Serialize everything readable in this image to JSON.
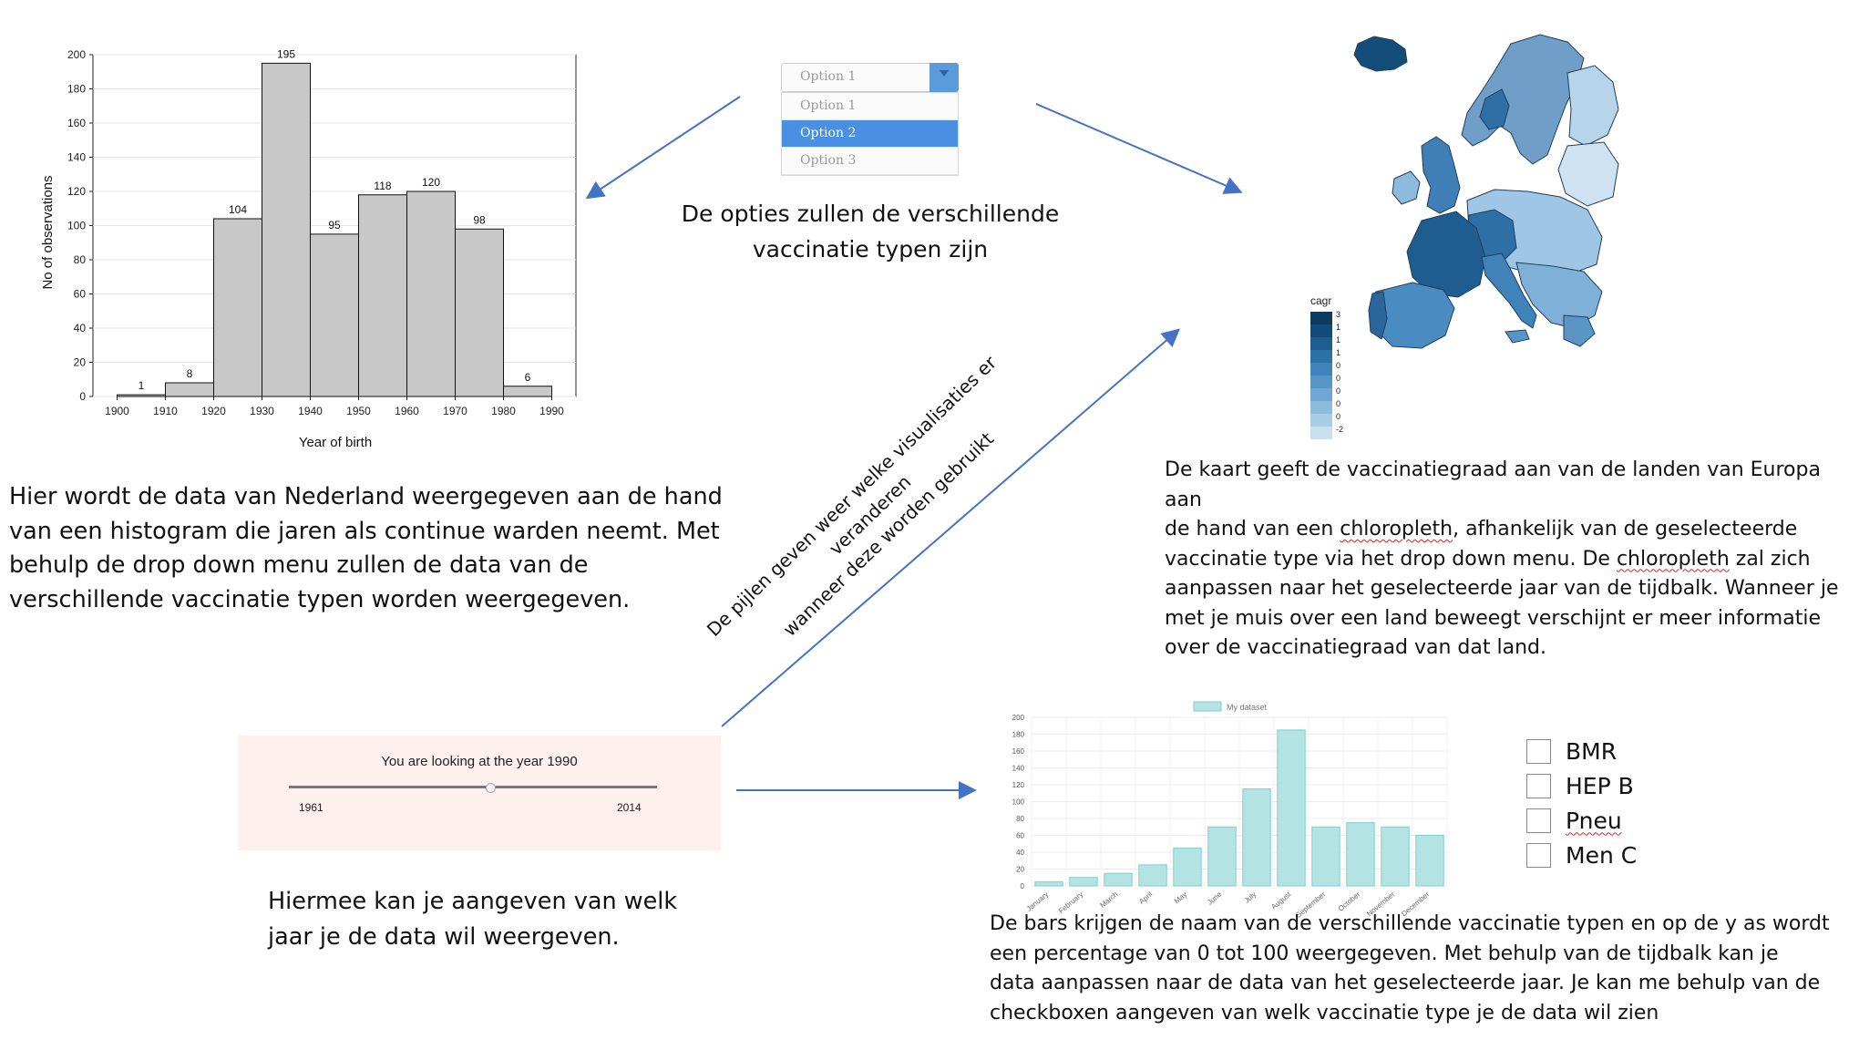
{
  "histogram": {
    "ylabel": "No of observations",
    "xlabel": "Year of birth",
    "bars": [
      {
        "from": 1900,
        "to": 1910,
        "value": 1
      },
      {
        "from": 1910,
        "to": 1920,
        "value": 8
      },
      {
        "from": 1920,
        "to": 1930,
        "value": 104
      },
      {
        "from": 1930,
        "to": 1940,
        "value": 195
      },
      {
        "from": 1940,
        "to": 1950,
        "value": 95
      },
      {
        "from": 1950,
        "to": 1960,
        "value": 118
      },
      {
        "from": 1960,
        "to": 1970,
        "value": 120
      },
      {
        "from": 1970,
        "to": 1980,
        "value": 98
      },
      {
        "from": 1980,
        "to": 1990,
        "value": 6
      }
    ],
    "yticks": [
      0,
      20,
      40,
      60,
      80,
      100,
      120,
      140,
      160,
      180,
      200
    ],
    "xticks": [
      1900,
      1910,
      1920,
      1930,
      1940,
      1950,
      1960,
      1970,
      1980,
      1990
    ],
    "ylim": [
      0,
      200
    ],
    "xlim": [
      1895,
      1995
    ],
    "bar_color": "#c8c8c8"
  },
  "dropdown": {
    "selected": "Option 1",
    "options": [
      "Option 1",
      "Option 2",
      "Option 3"
    ],
    "highlighted": "Option 2",
    "accent": "#4a90e2"
  },
  "texts": {
    "dropdown_note": [
      "De opties zullen de verschillende",
      "vaccinatie typen zijn"
    ],
    "histogram_note": [
      "Hier wordt de data van Nederland weergegeven aan de hand",
      "van een histogram die jaren als continue warden neemt. Met",
      "behulp de drop down menu zullen de data van de",
      "verschillende vaccinatie typen worden weergegeven."
    ],
    "arrows_note": [
      "De pijlen geven weer welke visualisaties er veranderen",
      "wanneer deze worden gebruikt"
    ],
    "map_note": [
      [
        "De kaart geeft de vaccinatiegraad aan van de landen van Europa aan"
      ],
      [
        "de hand van een ",
        "chloropleth",
        ", afhankelijk van de geselecteerde"
      ],
      [
        "vaccinatie type via het drop down menu. De ",
        "chloropleth",
        " zal zich"
      ],
      [
        "aanpassen naar het geselecteerde jaar van de tijdbalk. Wanneer je"
      ],
      [
        "met je muis over een land beweegt verschijnt er meer informatie"
      ],
      [
        "over de vaccinatiegraad van dat land."
      ]
    ],
    "slider_note": [
      "Hiermee kan je aangeven van welk",
      "jaar je de data wil weergeven."
    ],
    "bar_note": [
      "De bars krijgen de naam van de verschillende vaccinatie typen en op de y as wordt",
      "een percentage van 0 tot 100 weergegeven. Met behulp van de tijdbalk kan je",
      "data aanpassen naar de data van het geselecteerde jaar. Je kan me behulp van de",
      "checkboxen aangeven van welk vaccinatie type je de data wil zien"
    ]
  },
  "map": {
    "legend_title": "cagr",
    "legend_labels": [
      "3",
      "1",
      "1",
      "1",
      "0",
      "0",
      "0",
      "0",
      "0",
      "-2"
    ],
    "palette": [
      "#0d3a5f",
      "#134b78",
      "#1d5e8f",
      "#2c71a6",
      "#3f83b9",
      "#5596c7",
      "#6fa9d3",
      "#8bbbdd",
      "#a8cde6",
      "#c7dfef"
    ],
    "land_color": "#5f97c4",
    "outline_color": "#1f3f5c"
  },
  "slider": {
    "caption": "You are looking at the year 1990",
    "min_label": "1961",
    "max_label": "2014",
    "min": 1961,
    "max": 2014,
    "value": 1990
  },
  "bar_chart": {
    "legend": "My dataset",
    "categories": [
      "January",
      "February",
      "March",
      "April",
      "May",
      "June",
      "July",
      "August",
      "September",
      "October",
      "November",
      "December"
    ],
    "values": [
      5,
      10,
      15,
      25,
      45,
      70,
      115,
      185,
      70,
      75,
      70,
      60
    ],
    "yticks": [
      0,
      20,
      40,
      60,
      80,
      100,
      120,
      140,
      160,
      180,
      200
    ],
    "ylim": [
      0,
      200
    ],
    "fill": "#b3e3e3",
    "stroke": "#7fcfcf"
  },
  "checkboxes": [
    {
      "label": "BMR",
      "checked": false
    },
    {
      "label": "HEP B",
      "checked": false
    },
    {
      "label": "Pneu",
      "checked": false
    },
    {
      "label": "Men C",
      "checked": false
    }
  ],
  "arrow_color": "#4472c4"
}
